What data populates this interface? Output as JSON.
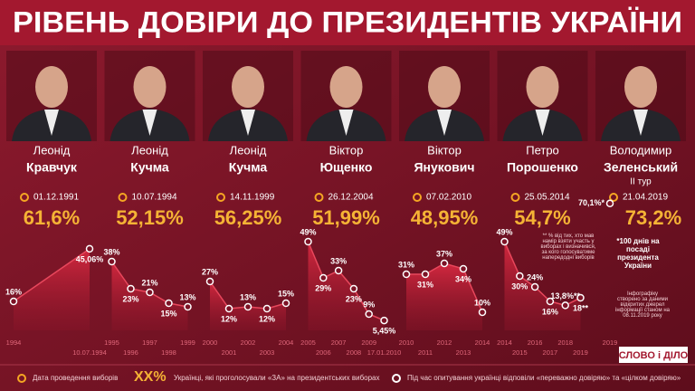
{
  "title": "РІВЕНЬ ДОВІРИ ДО ПРЕЗИДЕНТІВ УКРАЇНИ",
  "presidents": [
    {
      "first_name": "Леонід",
      "last_name": "Кравчук",
      "date": "01.12.1991",
      "vote": "61,6%",
      "trust": {
        "values": [
          16,
          45.06
        ],
        "value_labels": [
          "16%",
          "45,06%"
        ],
        "years": [
          "1994",
          "10.07.1994"
        ]
      }
    },
    {
      "first_name": "Леонід",
      "last_name": "Кучма",
      "date": "10.07.1994",
      "vote": "52,15%",
      "trust": {
        "values": [
          38,
          23,
          21,
          15,
          13
        ],
        "value_labels": [
          "38%",
          "23%",
          "21%",
          "15%",
          "13%"
        ],
        "years": [
          "1995",
          "1996",
          "1997",
          "1998",
          "1999"
        ]
      }
    },
    {
      "first_name": "Леонід",
      "last_name": "Кучма",
      "date": "14.11.1999",
      "vote": "56,25%",
      "trust": {
        "values": [
          27,
          12,
          13,
          12,
          15
        ],
        "value_labels": [
          "27%",
          "12%",
          "13%",
          "12%",
          "15%"
        ],
        "years": [
          "2000",
          "2001",
          "2002",
          "2003",
          "2004"
        ]
      }
    },
    {
      "first_name": "Віктор",
      "last_name": "Ющенко",
      "date": "26.12.2004",
      "vote": "51,99%",
      "trust": {
        "values": [
          49,
          29,
          33,
          23,
          9,
          5.45
        ],
        "value_labels": [
          "49%",
          "29%",
          "33%",
          "23%",
          "9%",
          "5,45%"
        ],
        "years": [
          "2005",
          "2006",
          "2007",
          "2008",
          "2009",
          "17.01.2010"
        ]
      }
    },
    {
      "first_name": "Віктор",
      "last_name": "Янукович",
      "date": "07.02.2010",
      "vote": "48,95%",
      "trust": {
        "values": [
          31,
          31,
          37,
          34,
          10
        ],
        "value_labels": [
          "31%",
          "31%",
          "37%",
          "34%",
          "10%"
        ],
        "years": [
          "2010",
          "2011",
          "2012",
          "2013",
          "2014"
        ]
      }
    },
    {
      "first_name": "Петро",
      "last_name": "Порошенко",
      "date": "25.05.2014",
      "vote": "54,7%",
      "note": "** % від тих, хто мав намір взяти участь у виборах і визначився, за кого голосуватиме напередодні виборів",
      "trust": {
        "values": [
          49,
          30,
          24,
          16,
          13.8,
          18
        ],
        "value_labels": [
          "49%",
          "30%",
          "24%",
          "16%",
          "13,8%**",
          "18**"
        ],
        "years": [
          "2014",
          "2015",
          "2016",
          "2017",
          "2018",
          "2019"
        ]
      }
    },
    {
      "first_name": "Володимир",
      "last_name": "Зеленський",
      "round": "II тур",
      "date": "21.04.2019",
      "vote": "73,2%",
      "note": "*100 днів на посаді президента України",
      "trust": {
        "values": [
          70.1
        ],
        "value_labels": [
          "70,1%*"
        ],
        "years": [
          "2019"
        ]
      }
    }
  ],
  "footnote": "Інфографіку створено за даними відкритих джерел інформації станом на 08.11.2019 року",
  "logo": "СЛОВО і ДІЛО",
  "legend": {
    "date": "Дата проведення виборів",
    "vote_sample": "XX%",
    "vote": "Українці, які проголосували «ЗА» на президентських виборах",
    "trust": "Під час опитування українці відповіли «переважно довіряю» та «цілком довіряю»"
  }
}
